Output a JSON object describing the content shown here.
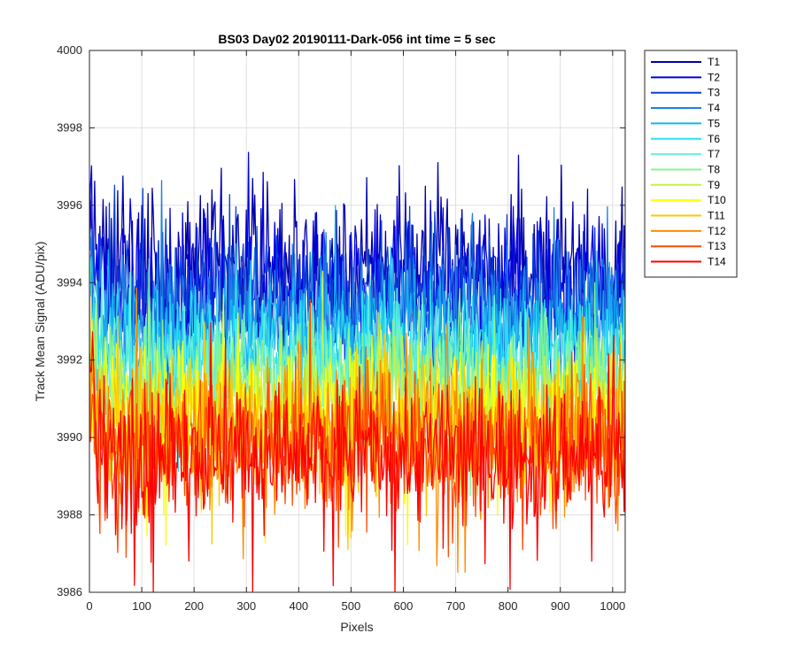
{
  "chart_data": {
    "type": "line",
    "title": "BS03 Day02 20190111-Dark-056 int time = 5 sec",
    "xlabel": "Pixels",
    "ylabel": "Track Mean Signal (ADU/pix)",
    "xlim": [
      0,
      1024
    ],
    "ylim": [
      3986,
      4000
    ],
    "xticks": [
      "0",
      "100",
      "200",
      "300",
      "400",
      "500",
      "600",
      "700",
      "800",
      "900",
      "1000"
    ],
    "yticks": [
      "3986",
      "3988",
      "3990",
      "3992",
      "3994",
      "3996",
      "3998",
      "4000"
    ],
    "grid": true,
    "legend_position": "outside-top-right",
    "series": [
      {
        "name": "T1",
        "color": "#0000AA",
        "base": 3994.3,
        "noise": 1.25
      },
      {
        "name": "T2",
        "color": "#0000E6",
        "base": 3994.0,
        "noise": 1.2
      },
      {
        "name": "T3",
        "color": "#0B3FD6",
        "base": 3993.6,
        "noise": 1.15
      },
      {
        "name": "T4",
        "color": "#1E7FE6",
        "base": 3993.1,
        "noise": 1.1
      },
      {
        "name": "T5",
        "color": "#14B4F0",
        "base": 3992.7,
        "noise": 1.05
      },
      {
        "name": "T6",
        "color": "#2AE0F0",
        "base": 3992.2,
        "noise": 1.0
      },
      {
        "name": "T7",
        "color": "#66F0D8",
        "base": 3991.8,
        "noise": 1.0
      },
      {
        "name": "T8",
        "color": "#88F58C",
        "base": 3991.4,
        "noise": 1.0
      },
      {
        "name": "T9",
        "color": "#C8F048",
        "base": 3991.0,
        "noise": 1.05
      },
      {
        "name": "T10",
        "color": "#FFFF00",
        "base": 3990.6,
        "noise": 1.1
      },
      {
        "name": "T11",
        "color": "#FFC800",
        "base": 3990.3,
        "noise": 1.15
      },
      {
        "name": "T12",
        "color": "#FF8C00",
        "base": 3990.0,
        "noise": 1.2
      },
      {
        "name": "T13",
        "color": "#FF4A00",
        "base": 3989.8,
        "noise": 1.2
      },
      {
        "name": "T14",
        "color": "#FF0000",
        "base": 3989.6,
        "noise": 1.2
      }
    ]
  }
}
